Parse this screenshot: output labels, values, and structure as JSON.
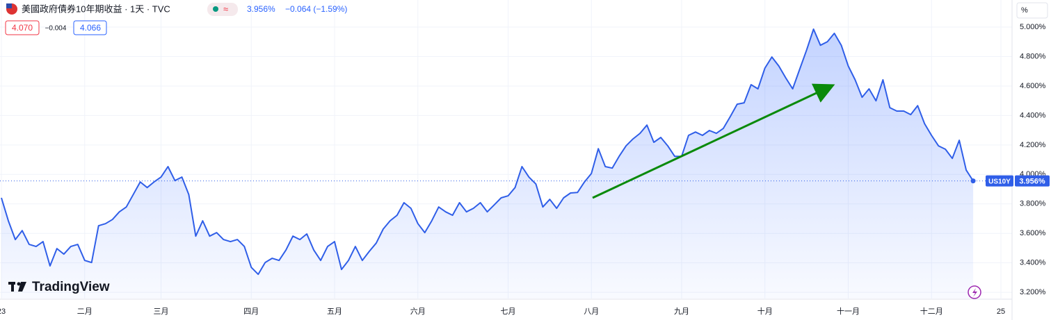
{
  "header": {
    "title": "美國政府債券10年期收益 · 1天 · TVC",
    "price": "3.956%",
    "change": "−0.064 (−1.59%)",
    "bid": "4.070",
    "spread": "−0.004",
    "ask": "4.066",
    "scale_button": "%",
    "symbol": "US10Y",
    "logo": "TradingView"
  },
  "chart_data": {
    "type": "line",
    "grid": true,
    "log_scale": false,
    "fill": true,
    "categories": [
      "23",
      null,
      null,
      null,
      null,
      null,
      null,
      null,
      null,
      null,
      null,
      null,
      "二月",
      null,
      null,
      null,
      null,
      null,
      null,
      null,
      null,
      null,
      null,
      "三月",
      null,
      null,
      null,
      null,
      null,
      null,
      null,
      null,
      null,
      null,
      null,
      null,
      "四月",
      null,
      null,
      null,
      null,
      null,
      null,
      null,
      null,
      null,
      null,
      null,
      "五月",
      null,
      null,
      null,
      null,
      null,
      null,
      null,
      null,
      null,
      null,
      null,
      "六月",
      null,
      null,
      null,
      null,
      null,
      null,
      null,
      null,
      null,
      null,
      null,
      null,
      "七月",
      null,
      null,
      null,
      null,
      null,
      null,
      null,
      null,
      null,
      null,
      null,
      "八月",
      null,
      null,
      null,
      null,
      null,
      null,
      null,
      null,
      null,
      null,
      null,
      null,
      "九月",
      null,
      null,
      null,
      null,
      null,
      null,
      null,
      null,
      null,
      null,
      null,
      "十月",
      null,
      null,
      null,
      null,
      null,
      null,
      null,
      null,
      null,
      null,
      null,
      "十一月",
      null,
      null,
      null,
      null,
      null,
      null,
      null,
      null,
      null,
      null,
      null,
      "十二月",
      null,
      null,
      null,
      null,
      null,
      null,
      null,
      null,
      null,
      "25"
    ],
    "series": [
      {
        "name": "US10Y",
        "color": "#2f5ee8",
        "values": [
          3.841,
          3.685,
          3.558,
          3.619,
          3.525,
          3.511,
          3.544,
          3.379,
          3.497,
          3.459,
          3.511,
          3.525,
          3.416,
          3.402,
          3.652,
          3.666,
          3.694,
          3.746,
          3.779,
          3.864,
          3.949,
          3.911,
          3.949,
          3.982,
          4.053,
          3.958,
          3.982,
          3.864,
          3.581,
          3.685,
          3.581,
          3.605,
          3.558,
          3.544,
          3.558,
          3.511,
          3.369,
          3.322,
          3.402,
          3.431,
          3.416,
          3.487,
          3.581,
          3.558,
          3.596,
          3.487,
          3.416,
          3.511,
          3.544,
          3.355,
          3.416,
          3.511,
          3.416,
          3.478,
          3.534,
          3.629,
          3.685,
          3.723,
          3.808,
          3.77,
          3.666,
          3.605,
          3.685,
          3.779,
          3.746,
          3.723,
          3.808,
          3.746,
          3.77,
          3.808,
          3.746,
          3.793,
          3.841,
          3.855,
          3.911,
          4.053,
          3.982,
          3.935,
          3.779,
          3.831,
          3.77,
          3.841,
          3.874,
          3.878,
          3.949,
          4.006,
          4.175,
          4.053,
          4.043,
          4.123,
          4.194,
          4.241,
          4.279,
          4.335,
          4.218,
          4.251,
          4.194,
          4.123,
          4.123,
          4.265,
          4.288,
          4.265,
          4.298,
          4.279,
          4.312,
          4.392,
          4.477,
          4.486,
          4.609,
          4.581,
          4.722,
          4.797,
          4.736,
          4.656,
          4.581,
          4.713,
          4.844,
          4.986,
          4.877,
          4.901,
          4.958,
          4.877,
          4.736,
          4.642,
          4.524,
          4.581,
          4.5,
          4.642,
          4.453,
          4.43,
          4.43,
          4.406,
          4.467,
          4.345,
          4.265,
          4.194,
          4.171,
          4.109,
          4.232,
          4.029,
          3.956,
          null,
          null,
          null,
          null
        ]
      }
    ],
    "ylim": [
      3.158,
      5.184
    ],
    "yticks": [
      {
        "value": 3.2,
        "label": "3.200%"
      },
      {
        "value": 3.4,
        "label": "3.400%"
      },
      {
        "value": 3.6,
        "label": "3.600%"
      },
      {
        "value": 3.8,
        "label": "3.800%"
      },
      {
        "value": 4.0,
        "label": "4.000%"
      },
      {
        "value": 4.2,
        "label": "4.200%"
      },
      {
        "value": 4.4,
        "label": "4.400%"
      },
      {
        "value": 4.6,
        "label": "4.600%"
      },
      {
        "value": 4.8,
        "label": "4.800%"
      },
      {
        "value": 5.0,
        "label": "5.000%"
      }
    ]
  }
}
